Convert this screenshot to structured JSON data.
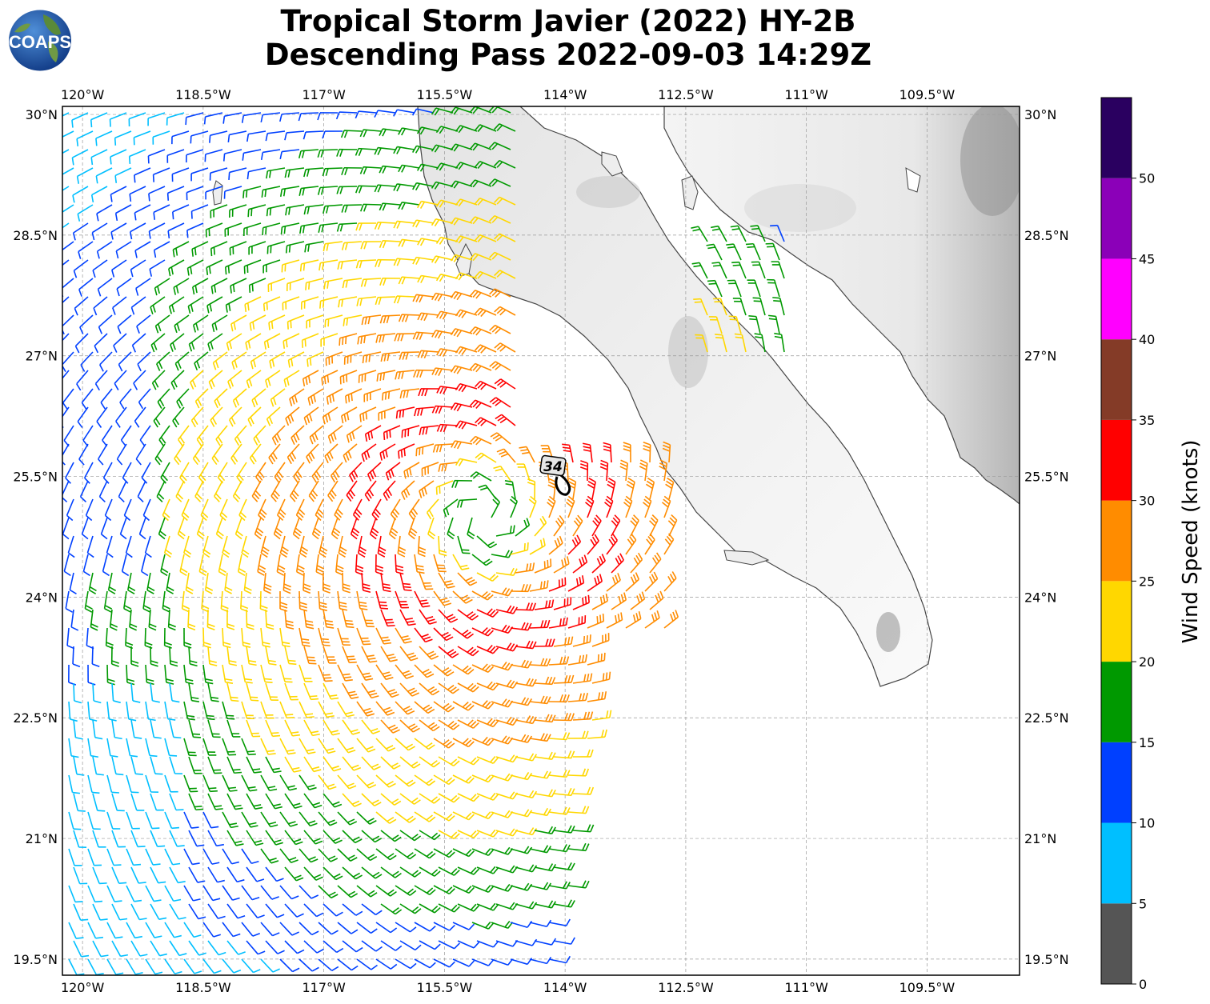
{
  "title_line1": "Tropical Storm Javier (2022) HY-2B",
  "title_line2": "Descending Pass 2022-09-03 14:29Z",
  "logo_text": "COAPS",
  "storm_label": "34",
  "map": {
    "lon_range": [
      -120.25,
      -108.35
    ],
    "lat_range": [
      19.3,
      30.1
    ],
    "lon_ticks": [
      {
        "value": -120.0,
        "label": "120°W"
      },
      {
        "value": -118.5,
        "label": "118.5°W"
      },
      {
        "value": -117.0,
        "label": "117°W"
      },
      {
        "value": -115.5,
        "label": "115.5°W"
      },
      {
        "value": -114.0,
        "label": "114°W"
      },
      {
        "value": -112.5,
        "label": "112.5°W"
      },
      {
        "value": -111.0,
        "label": "111°W"
      },
      {
        "value": -109.5,
        "label": "109.5°W"
      }
    ],
    "lat_ticks": [
      {
        "value": 30.0,
        "label": "30°N"
      },
      {
        "value": 28.5,
        "label": "28.5°N"
      },
      {
        "value": 27.0,
        "label": "27°N"
      },
      {
        "value": 25.5,
        "label": "25.5°N"
      },
      {
        "value": 24.0,
        "label": "24°N"
      },
      {
        "value": 22.5,
        "label": "22.5°N"
      },
      {
        "value": 21.0,
        "label": "21°N"
      },
      {
        "value": 19.5,
        "label": "19.5°N"
      }
    ],
    "grid": true,
    "storm_center": {
      "lon": -114.2,
      "lat": 25.6
    },
    "circulation_center": {
      "lon": -115.0,
      "lat": 25.0
    }
  },
  "colorbar": {
    "label": "Wind Speed (knots)",
    "bounds": [
      0,
      5,
      10,
      15,
      20,
      25,
      30,
      35,
      40,
      45,
      50,
      55
    ],
    "colors": [
      "#555555",
      "#00bfff",
      "#0040ff",
      "#009900",
      "#ffd700",
      "#ff8c00",
      "#ff0000",
      "#843b27",
      "#ff00ff",
      "#8b00b8",
      "#2a0060"
    ],
    "tick_labels": [
      "0",
      "5",
      "10",
      "15",
      "20",
      "25",
      "30",
      "35",
      "40",
      "45",
      "50"
    ]
  }
}
